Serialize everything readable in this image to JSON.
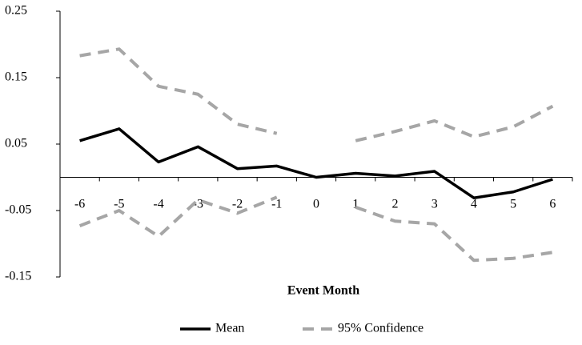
{
  "chart_data": {
    "type": "line",
    "x_label": "Event Month",
    "categories": [
      "-6",
      "-5",
      "-4",
      "-3",
      "-2",
      "-1",
      "0",
      "1",
      "2",
      "3",
      "4",
      "5",
      "6"
    ],
    "series": [
      {
        "name": "Mean",
        "color": "#000000",
        "dash": false,
        "values": [
          0.055,
          0.073,
          0.023,
          0.046,
          0.013,
          0.017,
          0.0,
          0.006,
          0.002,
          0.009,
          -0.031,
          -0.022,
          -0.003
        ]
      },
      {
        "name": "95% Confidence",
        "color": "#a6a6a6",
        "dash": true,
        "upper": [
          0.183,
          0.193,
          0.137,
          0.125,
          0.08,
          0.066,
          null,
          0.055,
          0.069,
          0.085,
          0.061,
          0.076,
          0.107
        ],
        "lower": [
          -0.073,
          -0.05,
          -0.089,
          -0.034,
          -0.054,
          -0.03,
          null,
          -0.045,
          -0.066,
          -0.07,
          -0.125,
          -0.122,
          -0.113
        ]
      }
    ],
    "ylim": [
      -0.15,
      0.25
    ],
    "yticks": [
      -0.15,
      -0.05,
      0.05,
      0.15,
      0.25
    ],
    "legend": "bottom"
  }
}
